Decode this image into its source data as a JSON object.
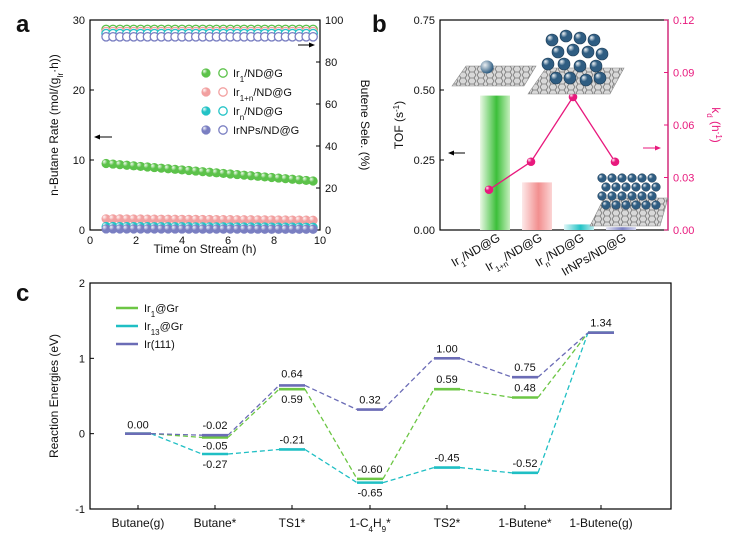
{
  "panel_labels": {
    "a": "a",
    "b": "b",
    "c": "c"
  },
  "colors": {
    "ir1": "#5cc24a",
    "ir1n": "#f2a0a0",
    "irn": "#23c3c6",
    "irnp": "#7a7fc2",
    "magenta": "#e8197d",
    "ir1gr": "#6cc644",
    "ir13gr": "#1fbfc4",
    "ir111": "#6b6cb6"
  },
  "chart_data": [
    {
      "type": "scatter",
      "panel": "a",
      "xlabel": "Time on Stream (h)",
      "ylabel_left": "n-Butane Rate (mol/(gIr·h))",
      "ylabel_right": "Butene Sele. (%)",
      "xlim": [
        0,
        10
      ],
      "ylim_left": [
        0,
        30
      ],
      "ylim_right": [
        0,
        100
      ],
      "x_ticks": [
        "0",
        "2",
        "4",
        "6",
        "8",
        "10"
      ],
      "y_ticks_left": [
        "0",
        "10",
        "20",
        "30"
      ],
      "y_ticks_right": [
        "0",
        "20",
        "40",
        "60",
        "80",
        "100"
      ],
      "x": [
        0.7,
        1.0,
        1.3,
        1.6,
        1.9,
        2.2,
        2.5,
        2.8,
        3.1,
        3.4,
        3.7,
        4.0,
        4.3,
        4.6,
        4.9,
        5.2,
        5.5,
        5.8,
        6.1,
        6.4,
        6.7,
        7.0,
        7.3,
        7.6,
        7.9,
        8.2,
        8.5,
        8.8,
        9.1,
        9.4,
        9.7
      ],
      "series": [
        {
          "name": "Ir1/ND@G",
          "key": "ir1",
          "rate_start": 9.5,
          "rate_end": 7.0,
          "selectivity": 95.5
        },
        {
          "name": "Ir1+n/ND@G",
          "key": "ir1n",
          "rate_start": 1.6,
          "rate_end": 1.4,
          "selectivity": 94.5
        },
        {
          "name": "Irn/ND@G",
          "key": "irn",
          "rate_start": 0.5,
          "rate_end": 0.4,
          "selectivity": 93.5
        },
        {
          "name": "IrNPs/ND@G",
          "key": "irnp",
          "rate_start": 0.15,
          "rate_end": 0.1,
          "selectivity": 92.0
        }
      ],
      "legend": [
        {
          "base": "Ir",
          "sub": "1",
          "rest": "/ND@G"
        },
        {
          "base": "Ir",
          "sub": "1+n",
          "rest": "/ND@G"
        },
        {
          "base": "Ir",
          "sub": "n",
          "rest": "/ND@G"
        },
        {
          "base": "IrNPs",
          "sub": "",
          "rest": "/ND@G"
        }
      ]
    },
    {
      "type": "bar",
      "panel": "b",
      "ylabel_left": "TOF (s-1)",
      "ylabel_right": "kd (h-1)",
      "ylim_left": [
        0,
        0.75
      ],
      "ylim_right": [
        0,
        0.12
      ],
      "y_ticks_left": [
        "0.00",
        "0.25",
        "0.50",
        "0.75"
      ],
      "y_ticks_right": [
        "0.00",
        "0.03",
        "0.06",
        "0.09",
        "0.12"
      ],
      "categories": [
        {
          "base": "Ir",
          "sub": "1",
          "rest": "/ND@G"
        },
        {
          "base": "Ir",
          "sub": "1+n",
          "rest": "/ND@G"
        },
        {
          "base": "Ir",
          "sub": "n",
          "rest": "/ND@G"
        },
        {
          "base": "IrNPs",
          "sub": "",
          "rest": "/ND@G"
        }
      ],
      "tof": [
        0.48,
        0.17,
        0.02,
        0.01
      ],
      "kd": [
        0.023,
        0.039,
        0.076,
        0.039
      ]
    },
    {
      "type": "line",
      "panel": "c",
      "ylabel": "Reaction Energies (eV)",
      "ylim": [
        -1,
        2
      ],
      "y_ticks": [
        "-1",
        "0",
        "1",
        "2"
      ],
      "categories": [
        {
          "base": "Butane(g)",
          "sub": "",
          "rest": ""
        },
        {
          "base": "Butane*",
          "sub": "",
          "rest": ""
        },
        {
          "base": "TS1*",
          "sub": "",
          "rest": ""
        },
        {
          "base": "1-C",
          "sub": "4",
          "rest": "H",
          "sub2": "9",
          "rest2": "*"
        },
        {
          "base": "TS2*",
          "sub": "",
          "rest": ""
        },
        {
          "base": "1-Butene*",
          "sub": "",
          "rest": ""
        },
        {
          "base": "1-Butene(g)",
          "sub": "",
          "rest": ""
        }
      ],
      "series": [
        {
          "name": "Ir1@Gr",
          "key": "ir1gr",
          "values": [
            0.0,
            -0.05,
            0.59,
            -0.6,
            0.59,
            0.48,
            1.34
          ]
        },
        {
          "name": "Ir13@Gr",
          "key": "ir13gr",
          "values": [
            0.0,
            -0.27,
            -0.21,
            -0.65,
            -0.45,
            -0.52,
            1.34
          ]
        },
        {
          "name": "Ir(111)",
          "key": "ir111",
          "values": [
            0.0,
            -0.02,
            0.64,
            0.32,
            1.0,
            0.75,
            1.34
          ]
        }
      ],
      "data_labels": [
        "0.00",
        "-0.02",
        "-0.05",
        "-0.27",
        "0.64",
        "0.59",
        "-0.21",
        "0.32",
        "-0.60",
        "-0.65",
        "1.00",
        "0.59",
        "-0.45",
        "0.75",
        "0.48",
        "-0.52",
        "1.34"
      ],
      "legend": [
        {
          "base": "Ir",
          "sub": "1",
          "rest": "@Gr"
        },
        {
          "base": "Ir",
          "sub": "13",
          "rest": "@Gr"
        },
        {
          "base": "Ir(111)",
          "sub": "",
          "rest": ""
        }
      ]
    }
  ]
}
